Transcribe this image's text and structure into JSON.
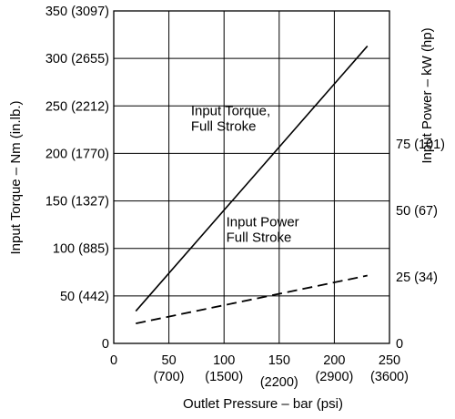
{
  "chart_data": {
    "type": "line",
    "xlabel": "Outlet Pressure – bar (psi)",
    "ylabel": "Input Torque – Nm (in.lb.)",
    "y2label": "Input Power – kW (hp)",
    "xlim": [
      0,
      250
    ],
    "ylim": [
      0,
      350
    ],
    "y2lim": [
      0,
      125
    ],
    "grid": true,
    "x_ticks": [
      {
        "value": 0,
        "label": "0",
        "sub": ""
      },
      {
        "value": 50,
        "label": "50",
        "sub": "(700)"
      },
      {
        "value": 100,
        "label": "100",
        "sub": "(1500)"
      },
      {
        "value": 150,
        "label": "150",
        "sub": "(2200)"
      },
      {
        "value": 200,
        "label": "200",
        "sub": "(2900)"
      },
      {
        "value": 250,
        "label": "250",
        "sub": "(3600)"
      }
    ],
    "y_ticks": [
      {
        "value": 0,
        "label": "0"
      },
      {
        "value": 50,
        "label": "50 (442)"
      },
      {
        "value": 100,
        "label": "100 (885)"
      },
      {
        "value": 150,
        "label": "150 (1327)"
      },
      {
        "value": 200,
        "label": "200 (1770)"
      },
      {
        "value": 250,
        "label": "250 (2212)"
      },
      {
        "value": 300,
        "label": "300 (2655)"
      },
      {
        "value": 350,
        "label": "350 (3097)"
      }
    ],
    "y2_ticks": [
      {
        "value": 0,
        "label": "0"
      },
      {
        "value": 25,
        "label": "25 (34)"
      },
      {
        "value": 50,
        "label": "50 (67)"
      },
      {
        "value": 75,
        "label": "75 (101)"
      }
    ],
    "series": [
      {
        "axis": "left",
        "style": "solid",
        "x": [
          20,
          230
        ],
        "y": [
          34,
          313
        ],
        "label_lines": [
          "Input Torque,",
          "Full Stroke"
        ],
        "label_at": [
          70,
          240
        ]
      },
      {
        "axis": "right",
        "style": "dashed",
        "x": [
          20,
          230
        ],
        "y": [
          7.5,
          25.5
        ],
        "label_lines": [
          "Input Power",
          "Full Stroke"
        ],
        "label_at": [
          102,
          44
        ]
      }
    ]
  }
}
